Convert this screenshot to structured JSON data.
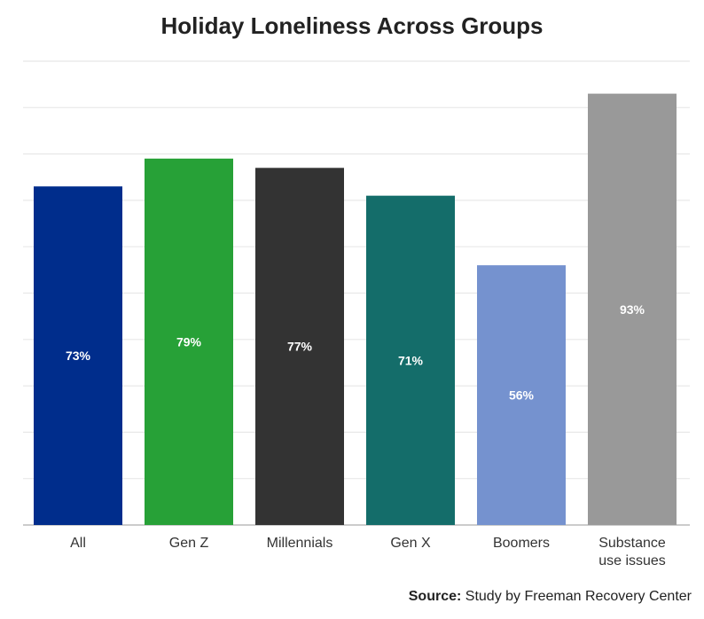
{
  "chart_data": {
    "type": "bar",
    "title": "Holiday Loneliness Across Groups",
    "categories": [
      "All",
      "Gen Z",
      "Millennials",
      "Gen X",
      "Boomers",
      "Substance use issues"
    ],
    "category_lines": [
      [
        "All"
      ],
      [
        "Gen Z"
      ],
      [
        "Millennials"
      ],
      [
        "Gen X"
      ],
      [
        "Boomers"
      ],
      [
        "Substance",
        "use issues"
      ]
    ],
    "values": [
      73,
      79,
      77,
      71,
      56,
      93
    ],
    "data_labels": [
      "73%",
      "79%",
      "77%",
      "71%",
      "56%",
      "93%"
    ],
    "colors": [
      "#002d8c",
      "#27a137",
      "#333333",
      "#146d6a",
      "#7592cf",
      "#999999"
    ],
    "xlabel": "",
    "ylabel": "",
    "ylim": [
      0,
      100
    ],
    "grid": true,
    "grid_step": 10
  },
  "source": {
    "label": "Source:",
    "text": " Study by Freeman Recovery Center"
  }
}
